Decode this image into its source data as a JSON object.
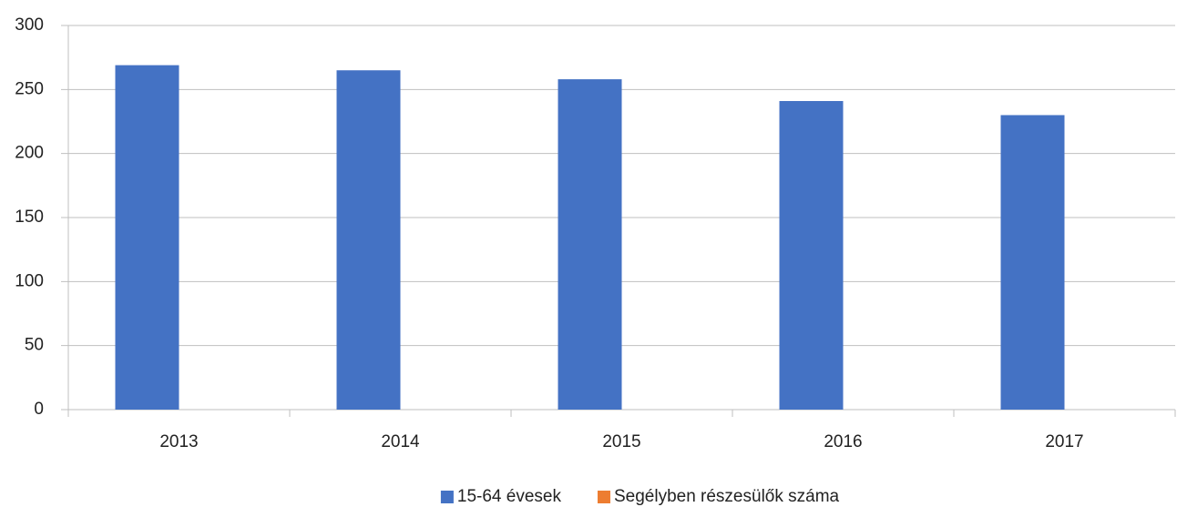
{
  "chart_data": {
    "type": "bar",
    "categories": [
      "2013",
      "2014",
      "2015",
      "2016",
      "2017"
    ],
    "series": [
      {
        "name": "15-64 évesek",
        "color": "#4472c4",
        "values": [
          269,
          265,
          258,
          241,
          230
        ]
      },
      {
        "name": "Segélyben részesülők száma",
        "color": "#ed7d31",
        "values": [
          0,
          0,
          0,
          0,
          0
        ]
      }
    ],
    "ylim": [
      0,
      300
    ],
    "yticks": [
      0,
      50,
      100,
      150,
      200,
      250,
      300
    ],
    "grid": true,
    "legend": "bottom"
  }
}
